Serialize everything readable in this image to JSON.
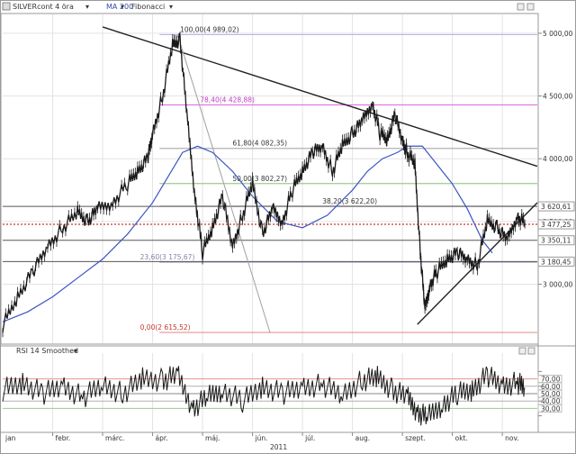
{
  "toolbar": {
    "instrument_label": "SILVERcont 4 öra",
    "ma_label": "MA 200",
    "fib_label": "Fibonacci"
  },
  "rsi": {
    "label": "RSI 14 Smoothed",
    "levels": [
      70,
      60,
      50,
      40,
      30
    ],
    "yticks": [
      80,
      60,
      40,
      20
    ],
    "ylim": [
      0,
      100
    ]
  },
  "chart_data": [
    {
      "type": "line",
      "title": "",
      "year_label": "2011",
      "x_ticks": [
        "jan",
        "febr.",
        "márc.",
        "ápr.",
        "máj.",
        "jún.",
        "júl.",
        "aug.",
        "szept.",
        "okt.",
        "nov."
      ],
      "xlim": [
        0,
        10.7
      ],
      "ylim": [
        2530,
        5150
      ],
      "y_ticks": [
        3000,
        3500,
        4000,
        4500,
        5000
      ],
      "y_tick_labels": [
        "3 000,00",
        "3 500,00",
        "4 000,00",
        "4 500,00",
        "5 000,00"
      ],
      "price_series": {
        "name": "SILVERcont",
        "x": [
          0.0,
          0.3,
          0.6,
          0.9,
          1.2,
          1.5,
          1.7,
          1.9,
          2.2,
          2.5,
          2.7,
          2.9,
          3.0,
          3.2,
          3.4,
          3.55,
          3.7,
          3.85,
          4.0,
          4.2,
          4.4,
          4.6,
          4.8,
          5.0,
          5.2,
          5.4,
          5.6,
          5.8,
          6.0,
          6.2,
          6.4,
          6.6,
          6.8,
          7.0,
          7.2,
          7.4,
          7.55,
          7.7,
          7.85,
          8.0,
          8.1,
          8.25,
          8.35,
          8.45,
          8.55,
          8.7,
          8.9,
          9.1,
          9.3,
          9.5,
          9.7,
          9.9,
          10.1,
          10.3,
          10.45
        ],
        "y": [
          2670,
          2900,
          3100,
          3300,
          3450,
          3570,
          3500,
          3600,
          3650,
          3800,
          3900,
          4000,
          4200,
          4500,
          4900,
          4950,
          4300,
          3700,
          3250,
          3450,
          3700,
          3300,
          3550,
          3800,
          3400,
          3600,
          3500,
          3750,
          3900,
          4050,
          4100,
          3900,
          4100,
          4200,
          4300,
          4450,
          4200,
          4150,
          4350,
          4150,
          4050,
          3950,
          3300,
          2800,
          3000,
          3100,
          3200,
          3250,
          3200,
          3150,
          3500,
          3450,
          3350,
          3550,
          3480
        ]
      },
      "ma_series": {
        "name": "MA 200",
        "x": [
          0.0,
          0.5,
          1.0,
          1.5,
          2.0,
          2.5,
          3.0,
          3.3,
          3.6,
          3.9,
          4.2,
          4.6,
          5.0,
          5.5,
          6.0,
          6.5,
          7.0,
          7.3,
          7.6,
          7.9,
          8.1,
          8.4,
          8.7,
          9.0,
          9.3,
          9.6,
          9.8
        ],
        "y": [
          2700,
          2780,
          2900,
          3050,
          3200,
          3400,
          3650,
          3850,
          4050,
          4100,
          4050,
          3900,
          3700,
          3500,
          3450,
          3550,
          3750,
          3900,
          4000,
          4050,
          4100,
          4100,
          3950,
          3800,
          3600,
          3350,
          3250
        ]
      },
      "fibonacci_levels": [
        {
          "label": "100,00(4 989,02)",
          "value": 4989.02,
          "color": "#b8b8e6"
        },
        {
          "label": "78,40(4 428,88)",
          "value": 4428.88,
          "color": "#e070e0"
        },
        {
          "label": "61,80(4 082,35)",
          "value": 4082.35,
          "color": "#b0b0b0"
        },
        {
          "label": "50,00(3 802,27)",
          "value": 3802.27,
          "color": "#9ccc8c"
        },
        {
          "label": "38,20(3 622,20)",
          "value": 3622.2,
          "color": "#b0b0b0"
        },
        {
          "label": "23,60(3 175,67)",
          "value": 3175.67,
          "color": "#a8a8c8"
        },
        {
          "label": "0,00(2 615,52)",
          "value": 2615.52,
          "color": "#e89090"
        }
      ],
      "price_tags": [
        {
          "label": "3 620,61",
          "value": 3620.61,
          "color": "#c0392b"
        },
        {
          "label": "3 477,25",
          "value": 3477.25,
          "color": "#c0392b"
        },
        {
          "label": "3 350,11",
          "value": 3350.11,
          "color": "#c0392b"
        },
        {
          "label": "3 180,45",
          "value": 3180.45,
          "color": "#c0392b"
        }
      ],
      "trendlines": [
        {
          "name": "downtrend",
          "points": [
            [
              2.0,
              5050
            ],
            [
              10.7,
              3940
            ]
          ]
        },
        {
          "name": "uptrend",
          "points": [
            [
              8.3,
              2680
            ],
            [
              10.7,
              3650
            ]
          ]
        },
        {
          "name": "fib-diagonal",
          "points": [
            [
              3.5,
              4989.02
            ],
            [
              5.35,
              2615.52
            ]
          ]
        }
      ],
      "horizontal_lines": [
        3620.61,
        3350.11,
        3180.45
      ],
      "dotted_line": 3477.25
    },
    {
      "type": "line",
      "title": "",
      "ylim": [
        0,
        100
      ],
      "series": [
        {
          "name": "RSI 14 Smoothed",
          "x": [
            0.0,
            0.4,
            0.8,
            1.2,
            1.6,
            2.0,
            2.4,
            2.8,
            3.2,
            3.5,
            3.8,
            4.1,
            4.4,
            4.8,
            5.2,
            5.6,
            6.0,
            6.4,
            6.8,
            7.2,
            7.5,
            7.8,
            8.1,
            8.3,
            8.5,
            8.8,
            9.1,
            9.4,
            9.7,
            10.0,
            10.3,
            10.45
          ],
          "y": [
            55,
            65,
            50,
            60,
            45,
            62,
            50,
            70,
            68,
            75,
            30,
            45,
            55,
            40,
            60,
            50,
            58,
            62,
            48,
            68,
            72,
            55,
            45,
            25,
            18,
            35,
            50,
            55,
            75,
            60,
            65,
            58
          ]
        }
      ]
    }
  ]
}
